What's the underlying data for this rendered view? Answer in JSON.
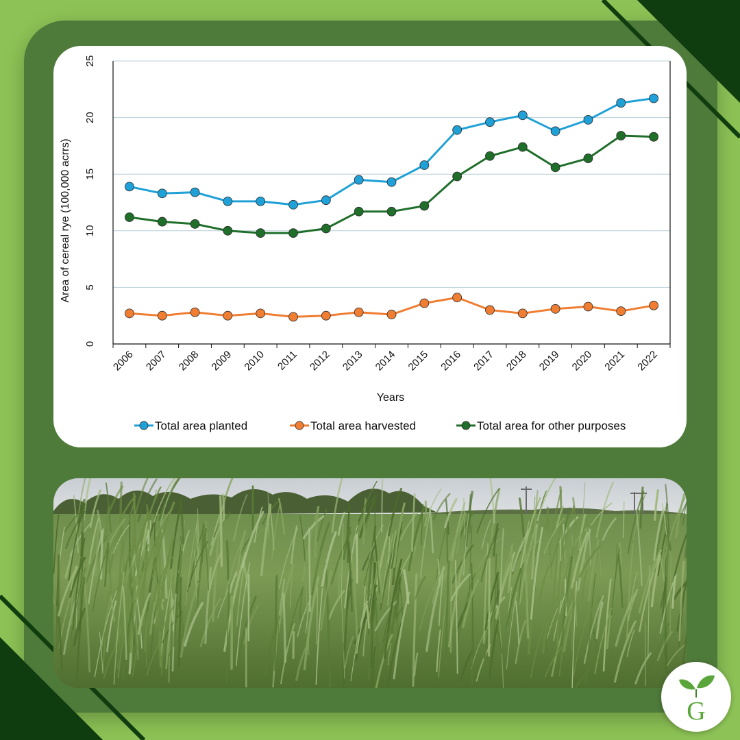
{
  "chart_data": {
    "type": "line",
    "title": "",
    "xlabel": "Years",
    "ylabel": "Area of cereal rye (100,000 acrrs)",
    "ylim": [
      0,
      25
    ],
    "yticks": [
      "0",
      "5",
      "10",
      "15",
      "20",
      "25"
    ],
    "grid": true,
    "legend_position": "bottom",
    "categories": [
      "2006",
      "2007",
      "2008",
      "2009",
      "2010",
      "2011",
      "2012",
      "2013",
      "2014",
      "2015",
      "2016",
      "2017",
      "2018",
      "2019",
      "2020",
      "2021",
      "2022"
    ],
    "series": [
      {
        "name": "Total area planted",
        "color": "#1fa0d6",
        "values": [
          13.9,
          13.3,
          13.4,
          12.6,
          12.6,
          12.3,
          12.7,
          14.5,
          14.3,
          15.8,
          18.9,
          19.6,
          20.2,
          18.8,
          19.8,
          21.3,
          21.7
        ]
      },
      {
        "name": "Total area harvested",
        "color": "#ef7d32",
        "values": [
          2.7,
          2.5,
          2.8,
          2.5,
          2.7,
          2.4,
          2.5,
          2.8,
          2.6,
          3.6,
          4.1,
          3.0,
          2.7,
          3.1,
          3.3,
          2.9,
          3.4
        ]
      },
      {
        "name": "Total area for other purposes",
        "color": "#1f6e2a",
        "values": [
          11.2,
          10.8,
          10.6,
          10.0,
          9.8,
          9.8,
          10.2,
          11.7,
          11.7,
          12.2,
          14.8,
          16.6,
          17.4,
          15.6,
          16.4,
          18.4,
          18.3
        ]
      }
    ]
  },
  "colors": {
    "background": "#8dc356",
    "frame": "#4e7a3a",
    "dark_stripe": "#0f3d0f",
    "gridline": "#b8cfd8"
  },
  "photo": {
    "icon": "cereal-rye-field-photo"
  },
  "logo": {
    "icon": "leaf-sprout-icon",
    "letter": "G"
  }
}
